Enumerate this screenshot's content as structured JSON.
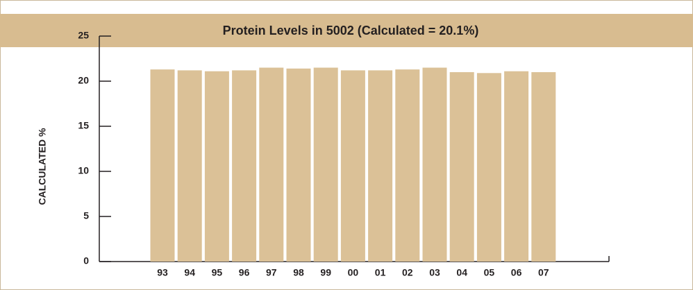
{
  "chart_data": {
    "type": "bar",
    "title": "Protein Levels in 5002 (Calculated = 20.1%)",
    "y_label": "CALCULATED %",
    "categories": [
      "93",
      "94",
      "95",
      "96",
      "97",
      "98",
      "99",
      "00",
      "01",
      "02",
      "03",
      "04",
      "05",
      "06",
      "07"
    ],
    "values": [
      21.3,
      21.2,
      21.1,
      21.2,
      21.5,
      21.4,
      21.5,
      21.2,
      21.2,
      21.3,
      21.5,
      21.0,
      20.9,
      21.1,
      21.0
    ],
    "color": "#dbc197",
    "ylim": [
      0,
      25
    ],
    "yticks": [
      0,
      5,
      10,
      15,
      20,
      25
    ],
    "grid": false
  }
}
